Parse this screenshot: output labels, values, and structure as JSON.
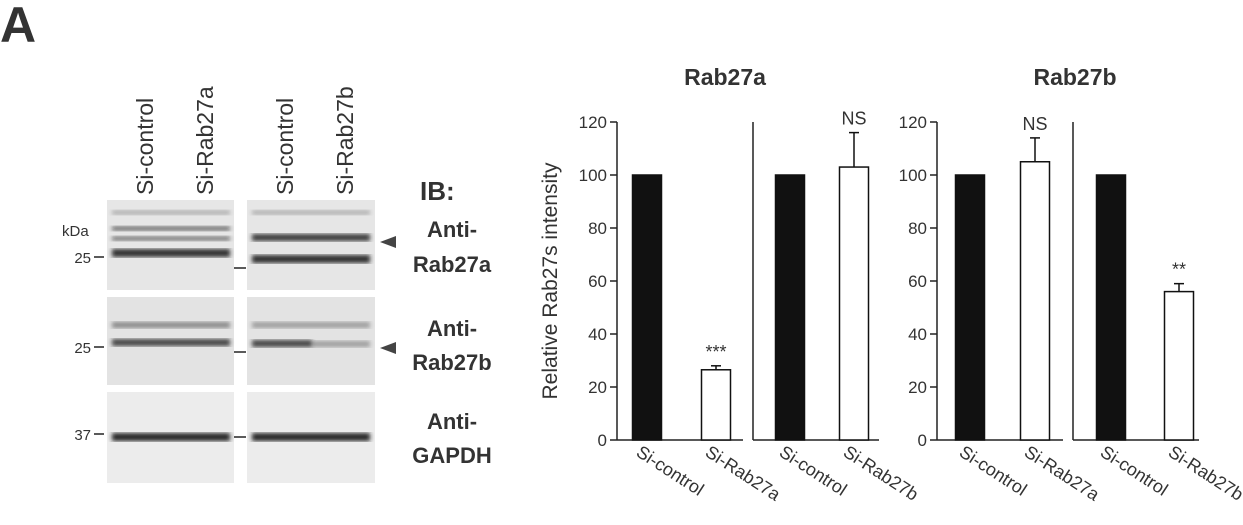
{
  "panel_label": "A",
  "blot": {
    "lanes": [
      "Si-control",
      "Si-Rab27a",
      "Si-control",
      "Si-Rab27b"
    ],
    "ib_label": "IB:",
    "kda_label": "kDa",
    "rows": [
      {
        "marker": 25,
        "antibody": [
          "Anti-",
          "Rab27a"
        ]
      },
      {
        "marker": 25,
        "antibody": [
          "Anti-",
          "Rab27b"
        ]
      },
      {
        "marker": 37,
        "antibody": [
          "Anti-",
          "GAPDH"
        ]
      }
    ]
  },
  "chart_data": [
    {
      "type": "bar",
      "title": "Rab27a",
      "y_label": "Relative Rab27s intensity",
      "categories": [
        "Si-control",
        "Si-Rab27a"
      ],
      "values": [
        100,
        26.5
      ],
      "errors": [
        null,
        1.5
      ],
      "annotations": [
        null,
        "***"
      ],
      "colors": [
        "#111111",
        "#ffffff"
      ],
      "ylim": [
        0,
        120
      ],
      "yticks": [
        0,
        20,
        40,
        60,
        80,
        100,
        120
      ]
    },
    {
      "type": "bar",
      "categories": [
        "Si-control",
        "Si-Rab27b"
      ],
      "values": [
        100,
        103
      ],
      "errors": [
        null,
        13
      ],
      "annotations": [
        null,
        "NS"
      ],
      "colors": [
        "#111111",
        "#ffffff"
      ],
      "ylim": [
        0,
        120
      ]
    },
    {
      "type": "bar",
      "title": "Rab27b",
      "categories": [
        "Si-control",
        "Si-Rab27a"
      ],
      "values": [
        100,
        105
      ],
      "errors": [
        null,
        9
      ],
      "annotations": [
        null,
        "NS"
      ],
      "colors": [
        "#111111",
        "#ffffff"
      ],
      "ylim": [
        0,
        120
      ],
      "yticks": [
        0,
        20,
        40,
        60,
        80,
        100,
        120
      ]
    },
    {
      "type": "bar",
      "categories": [
        "Si-control",
        "Si-Rab27b"
      ],
      "values": [
        100,
        56
      ],
      "errors": [
        null,
        3
      ],
      "annotations": [
        null,
        "**"
      ],
      "colors": [
        "#111111",
        "#ffffff"
      ],
      "ylim": [
        0,
        120
      ]
    }
  ]
}
